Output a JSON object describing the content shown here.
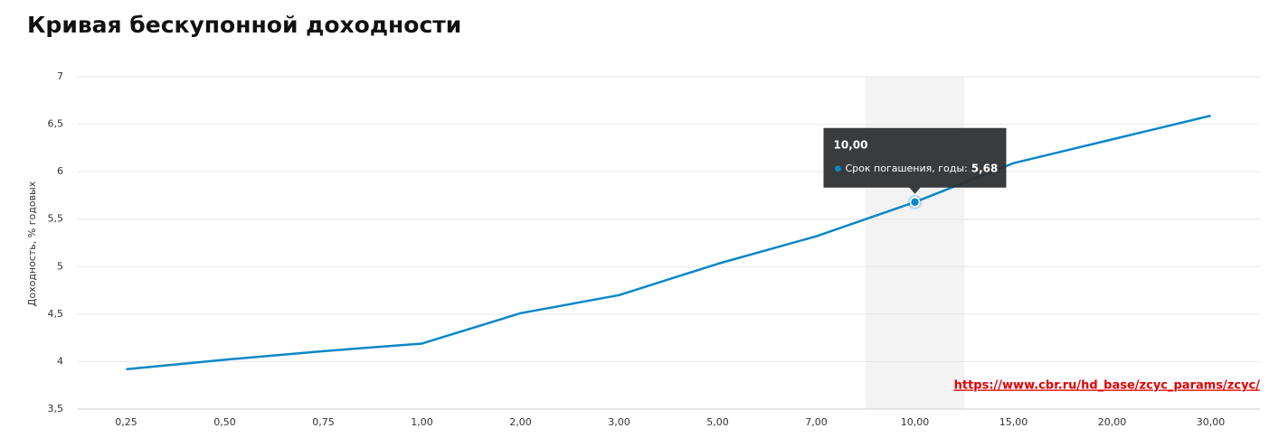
{
  "chart_data": {
    "type": "line",
    "title": "Кривая бескупонной доходности",
    "y_label": "Доходность, % годовых",
    "categories": [
      "0,25",
      "0,50",
      "0,75",
      "1,00",
      "2,00",
      "3,00",
      "5,00",
      "7,00",
      "10,00",
      "15,00",
      "20,00",
      "30,00"
    ],
    "series": [
      {
        "name": "Срок погашения, годы",
        "color": "#0a87c6",
        "values": [
          3.92,
          4.02,
          4.11,
          4.19,
          4.51,
          4.7,
          5.03,
          5.32,
          5.68,
          6.09,
          6.34,
          6.59
        ]
      }
    ],
    "ylim": [
      3.5,
      7
    ],
    "yticks": [
      {
        "value": 3.5,
        "label": "3,5"
      },
      4,
      {
        "value": 4.5,
        "label": "4,5"
      },
      5,
      {
        "value": 5.5,
        "label": "5,5"
      },
      6,
      {
        "value": 6.5,
        "label": "6,5"
      },
      7
    ],
    "grid": true,
    "tooltip": {
      "title": "10,00",
      "label": "Срок погашения, годы:",
      "value_label": "5,68"
    },
    "annotation": "https://www.cbr.ru/hd_base/zcyc_params/zcyc/"
  }
}
